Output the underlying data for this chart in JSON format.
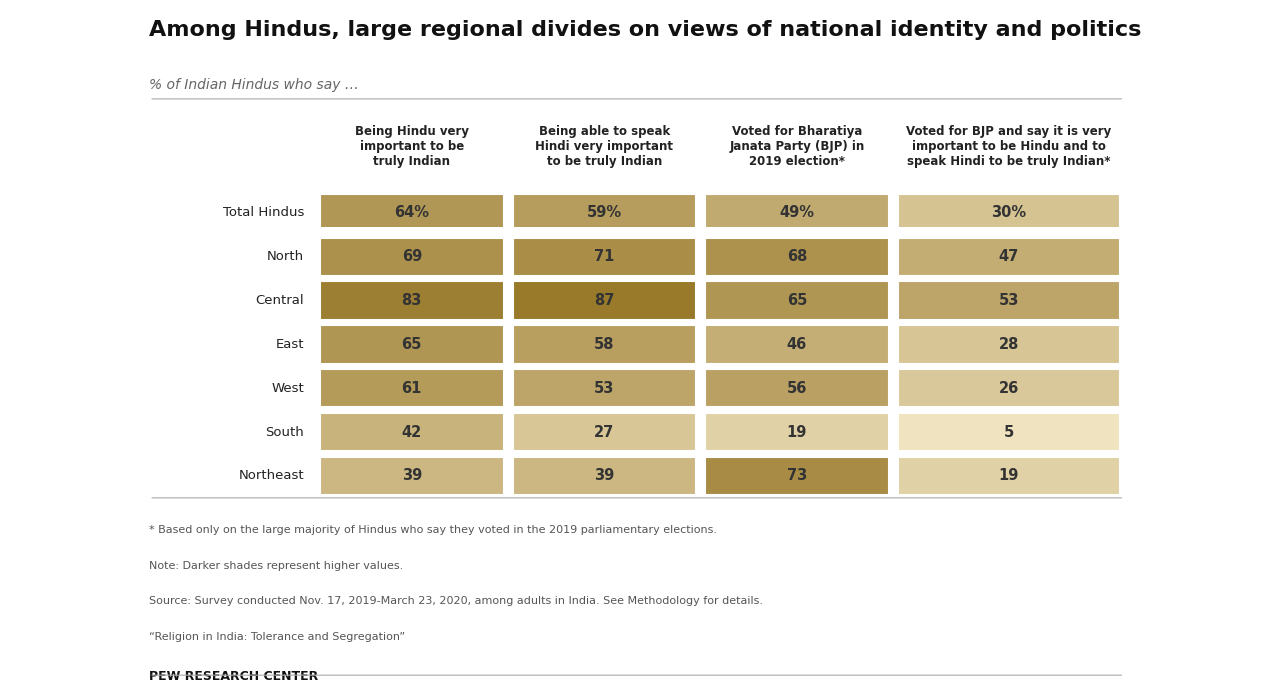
{
  "title": "Among Hindus, large regional divides on views of national identity and politics",
  "subtitle": "% of Indian Hindus who say …",
  "col_headers": [
    "Being Hindu very\nimportant to be\ntruly Indian",
    "Being able to speak\nHindi very important\nto be truly Indian",
    "Voted for Bharatiya\nJanata Party (BJP) in\n2019 election*",
    "Voted for BJP and say it is very\nimportant to be Hindu and to\nspeak Hindi to be truly Indian*"
  ],
  "row_labels": [
    "Total Hindus",
    "North",
    "Central",
    "East",
    "West",
    "South",
    "Northeast"
  ],
  "values": [
    [
      64,
      59,
      49,
      30
    ],
    [
      69,
      71,
      68,
      47
    ],
    [
      83,
      87,
      65,
      53
    ],
    [
      65,
      58,
      46,
      28
    ],
    [
      61,
      53,
      56,
      26
    ],
    [
      42,
      27,
      19,
      5
    ],
    [
      39,
      39,
      73,
      19
    ]
  ],
  "display_values": [
    [
      "64%",
      "59%",
      "49%",
      "30%"
    ],
    [
      "69",
      "71",
      "68",
      "47"
    ],
    [
      "83",
      "87",
      "65",
      "53"
    ],
    [
      "65",
      "58",
      "46",
      "28"
    ],
    [
      "61",
      "53",
      "56",
      "26"
    ],
    [
      "42",
      "27",
      "19",
      "5"
    ],
    [
      "39",
      "39",
      "73",
      "19"
    ]
  ],
  "footnotes": [
    "* Based only on the large majority of Hindus who say they voted in the 2019 parliamentary elections.",
    "Note: Darker shades represent higher values.",
    "Source: Survey conducted Nov. 17, 2019-March 23, 2020, among adults in India. See Methodology for details.",
    "“Religion in India: Tolerance and Segregation”"
  ],
  "source_label": "PEW RESEARCH CENTER",
  "color_min": "#f5e9c8",
  "color_max": "#8B6914",
  "background_color": "#ffffff",
  "title_fontsize": 16,
  "cell_text_color_light": "#333333",
  "cell_text_color_dark": "#ffffff"
}
